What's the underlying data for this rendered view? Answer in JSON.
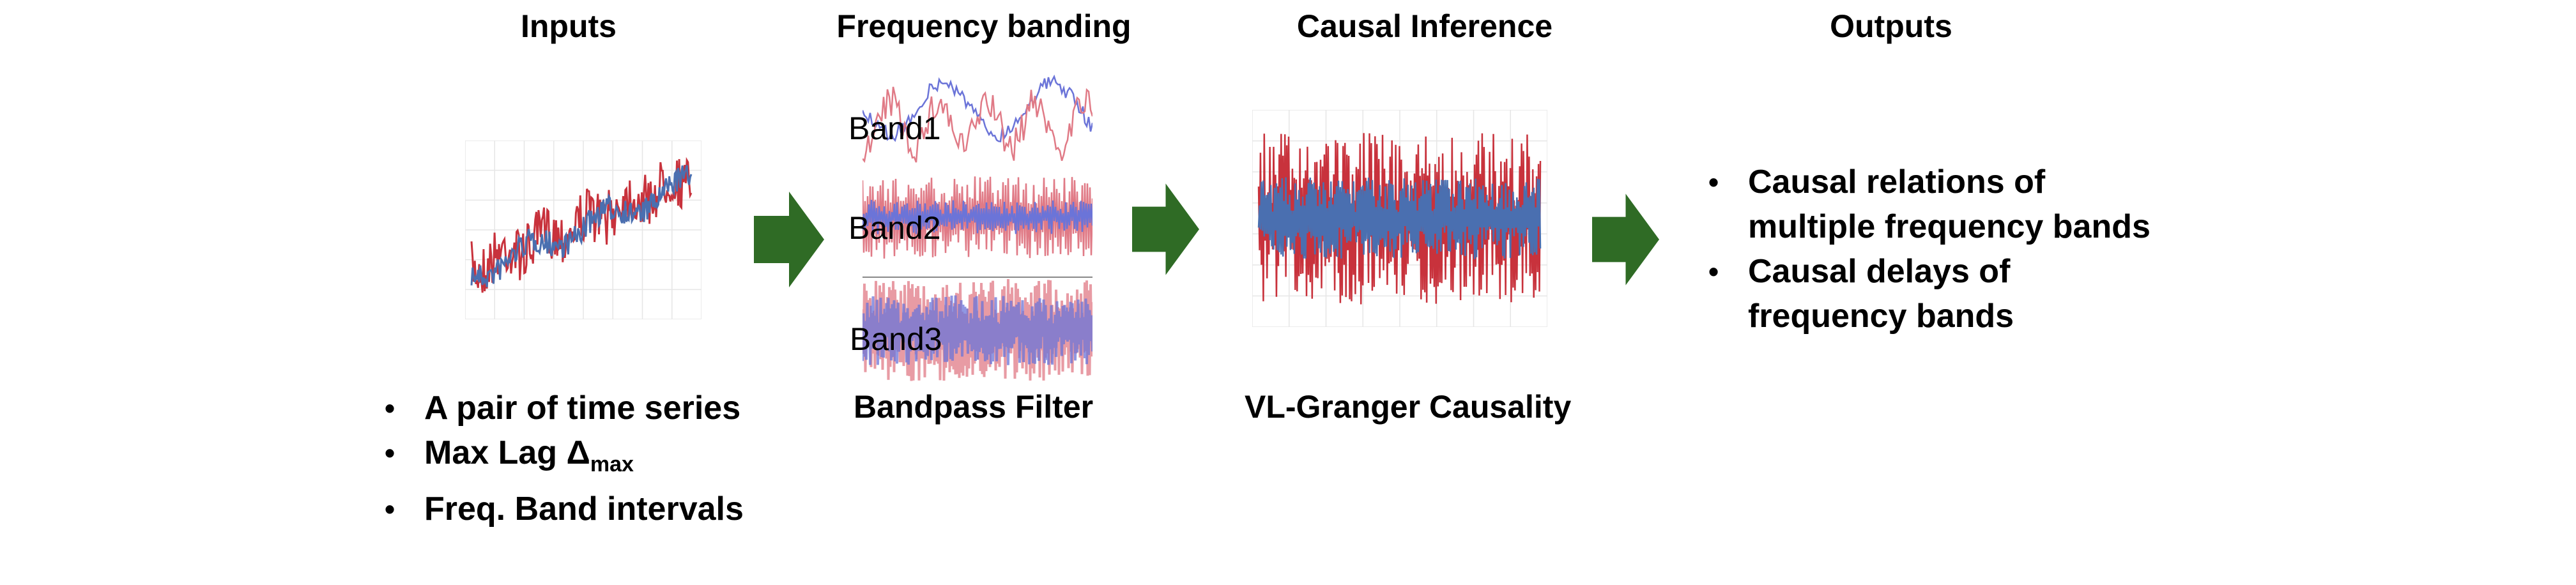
{
  "headings": {
    "inputs": "Inputs",
    "banding": "Frequency banding",
    "causal": "Causal Inference",
    "outputs": "Outputs"
  },
  "inputs_list": {
    "item1": "A pair of time series",
    "item2_text": "Max Lag Δ",
    "item2_sub": "max",
    "item3": "Freq. Band intervals"
  },
  "bands": {
    "band1": "Band1",
    "band2": "Band2",
    "band3": "Band3"
  },
  "bandpass_label": "Bandpass Filter",
  "causal_label": "VL-Granger Causality",
  "outputs_list": {
    "item1_line1": "Causal relations of",
    "item1_line2": "multiple frequency bands",
    "item2_line1": "Causal delays of",
    "item2_line2": "frequency bands"
  },
  "colors": {
    "series_red": "#c8323c",
    "series_blue": "#4a6fb0",
    "band_red": "#e07a86",
    "band_blue": "#6b74d8",
    "arrow": "#2f6b25",
    "grid": "#e6e6e6"
  }
}
